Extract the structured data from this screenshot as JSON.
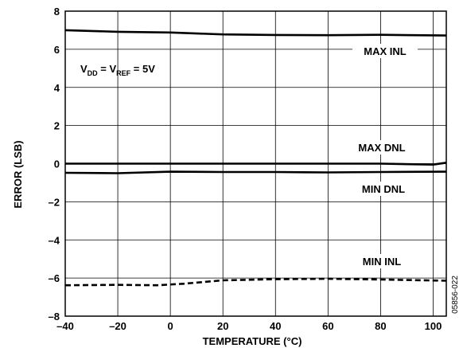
{
  "chart_data": {
    "type": "line",
    "xlabel": "TEMPERATURE (°C)",
    "ylabel": "ERROR (LSB)",
    "xlim": [
      -40,
      105
    ],
    "ylim": [
      -8,
      8
    ],
    "x_ticks": [
      -40,
      -20,
      0,
      20,
      40,
      60,
      80,
      100
    ],
    "y_ticks": [
      8,
      6,
      4,
      2,
      0,
      -2,
      -4,
      -6,
      -8
    ],
    "x_tick_labels": [
      "–40",
      "–20",
      "0",
      "20",
      "40",
      "60",
      "80",
      "100"
    ],
    "y_tick_labels": [
      "8",
      "6",
      "4",
      "2",
      "0",
      "–2",
      "–4",
      "–6",
      "–8"
    ],
    "grid": true,
    "condition": {
      "v1": "V",
      "v1_sub": "DD",
      "eq1": " = V",
      "v2_sub": "REF",
      "eq2": " = 5V"
    },
    "series": [
      {
        "name": "MAX INL",
        "style": "solid",
        "x": [
          -40,
          -20,
          0,
          20,
          40,
          60,
          80,
          105
        ],
        "y": [
          7.0,
          6.92,
          6.88,
          6.78,
          6.75,
          6.74,
          6.76,
          6.72
        ]
      },
      {
        "name": "MAX DNL",
        "style": "solid",
        "x": [
          -40,
          0,
          40,
          80,
          100,
          105
        ],
        "y": [
          0.0,
          0.0,
          0.0,
          0.0,
          -0.05,
          0.05
        ]
      },
      {
        "name": "MIN DNL",
        "style": "solid",
        "x": [
          -40,
          -20,
          0,
          20,
          40,
          60,
          80,
          105
        ],
        "y": [
          -0.48,
          -0.5,
          -0.42,
          -0.44,
          -0.44,
          -0.46,
          -0.44,
          -0.42
        ]
      },
      {
        "name": "MIN INL",
        "style": "dashed",
        "x": [
          -40,
          -20,
          -5,
          5,
          20,
          40,
          60,
          80,
          105
        ],
        "y": [
          -6.38,
          -6.36,
          -6.38,
          -6.3,
          -6.12,
          -6.06,
          -6.04,
          -6.08,
          -6.14
        ]
      }
    ],
    "figure_code": "05856-022"
  }
}
